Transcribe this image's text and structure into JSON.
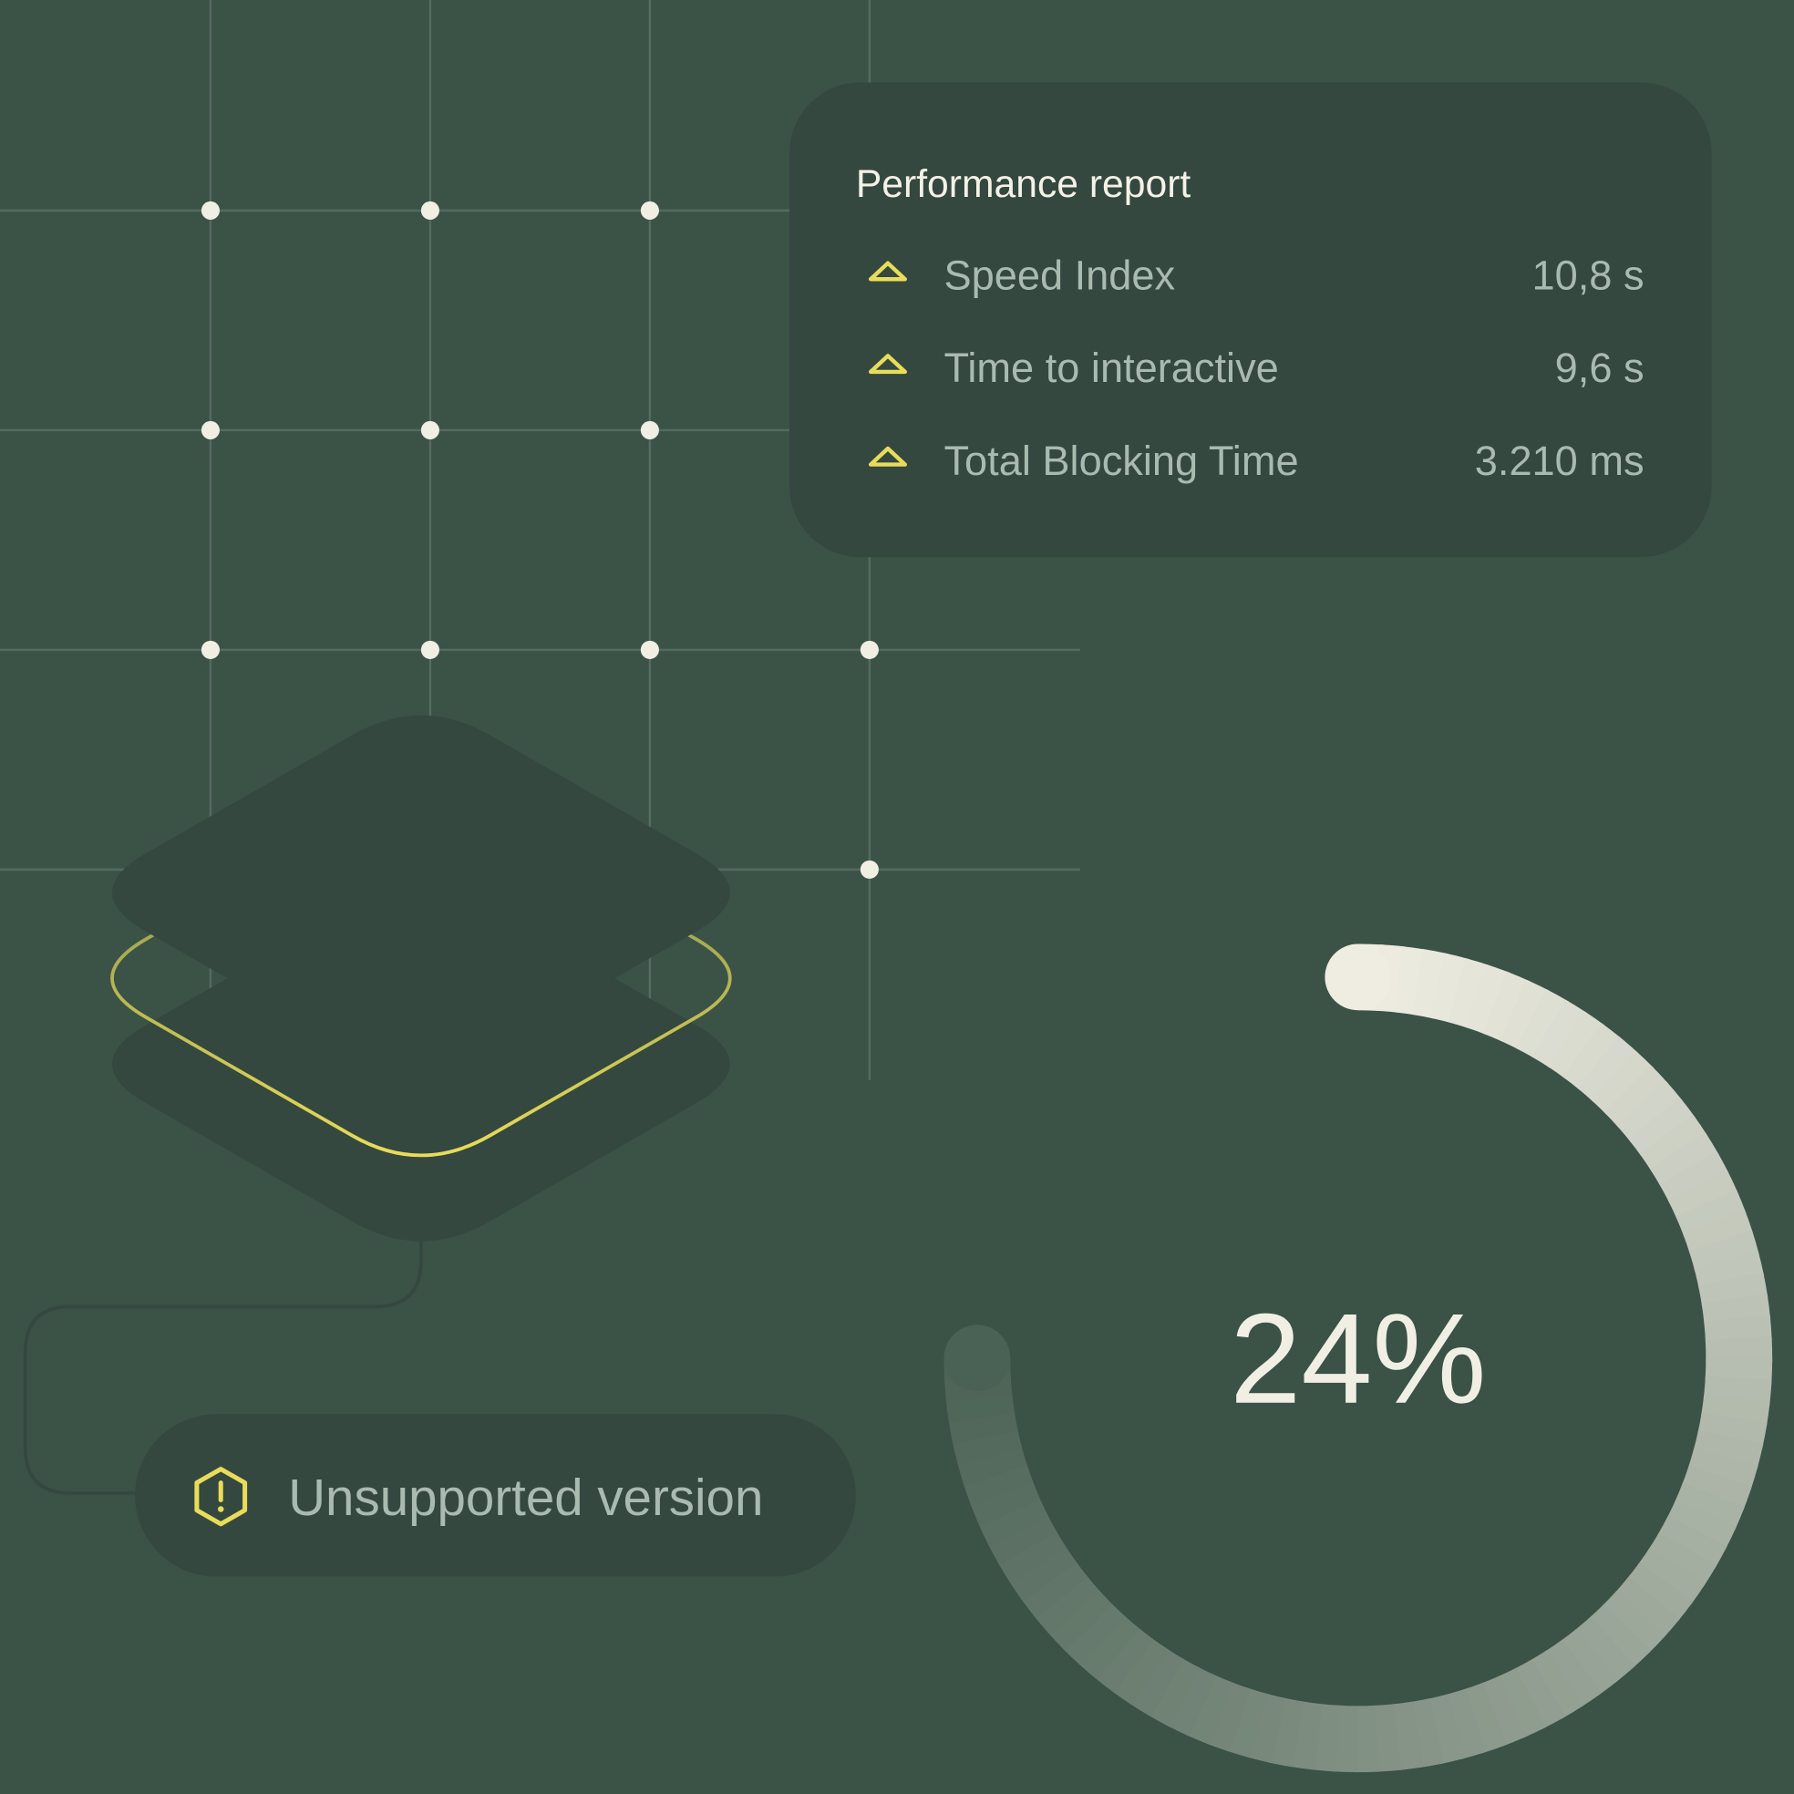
{
  "colors": {
    "background": "#3b5247",
    "card": "#34483f",
    "accent_yellow": "#e9dc5a",
    "text_primary": "#f4f1e6",
    "text_muted": "#a9bab0",
    "grid_dot": "#f1efe4"
  },
  "report": {
    "title": "Performance report",
    "metrics": [
      {
        "icon": "warning-triangle-icon",
        "label": "Speed Index",
        "value": "10,8 s"
      },
      {
        "icon": "warning-triangle-icon",
        "label": "Time to interactive",
        "value": "9,6 s"
      },
      {
        "icon": "warning-triangle-icon",
        "label": "Total Blocking Time",
        "value": "3.210 ms"
      }
    ]
  },
  "status": {
    "icon": "warning-hexagon-icon",
    "label": "Unsupported version"
  },
  "score": {
    "percent_label": "24%",
    "percent": 24
  }
}
